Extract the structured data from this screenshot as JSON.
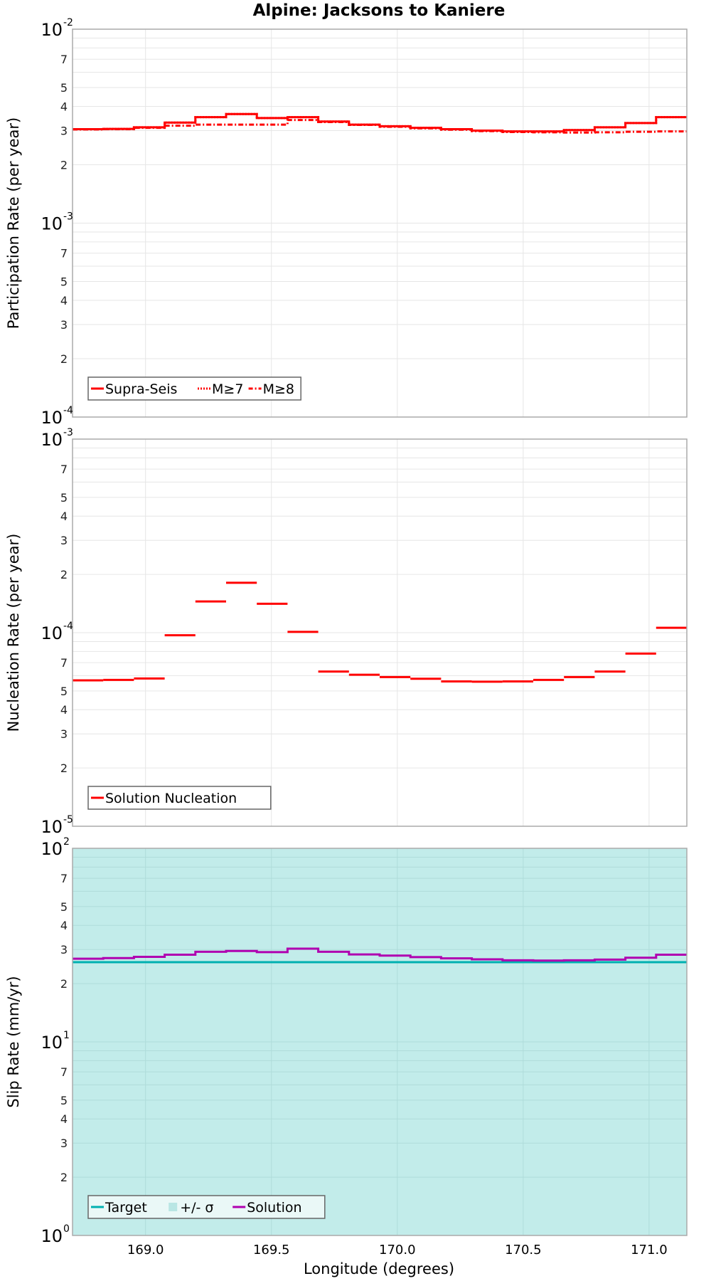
{
  "title": "Alpine: Jacksons to Kaniere",
  "xlabel": "Longitude (degrees)",
  "colors": {
    "red": "#ff0000",
    "target": "#00b0b0",
    "sigma_fill": "#c2ecea",
    "solution": "#b000b0",
    "grid": "#e6e6e6",
    "axis": "#aaaaaa"
  },
  "chart_data": [
    {
      "type": "line",
      "title": "Alpine: Jacksons to Kaniere",
      "xlabel": "Longitude (degrees)",
      "ylabel": "Participation Rate (per year)",
      "yscale": "log",
      "ylim": [
        0.0001,
        0.01
      ],
      "xlim": [
        168.71,
        171.15
      ],
      "x_ticks": [
        "169.0",
        "169.5",
        "170.0",
        "170.5",
        "171.0"
      ],
      "y_major_ticks": [
        "10^-4",
        "10^-3",
        "10^-2"
      ],
      "y_minor_tick_labels": [
        "2",
        "3",
        "4",
        "5",
        "7"
      ],
      "grid": true,
      "legend_position": "lower left",
      "legend": [
        "Supra-Seis",
        "M≥7",
        "M≥8"
      ],
      "x_bin_edges": [
        168.71,
        168.832,
        168.954,
        169.076,
        169.198,
        169.32,
        169.442,
        169.564,
        169.686,
        169.808,
        169.93,
        170.052,
        170.174,
        170.296,
        170.418,
        170.54,
        170.662,
        170.784,
        170.906,
        171.028,
        171.15
      ],
      "series": [
        {
          "name": "Supra-Seis",
          "style": "solid",
          "values": [
            0.00305,
            0.00306,
            0.00312,
            0.0033,
            0.00352,
            0.00365,
            0.00348,
            0.00352,
            0.00334,
            0.00322,
            0.00316,
            0.0031,
            0.00305,
            0.003,
            0.00297,
            0.00297,
            0.00302,
            0.00312,
            0.00328,
            0.00352
          ]
        },
        {
          "name": "M≥7",
          "style": "dotted",
          "values": [
            0.00305,
            0.00306,
            0.00312,
            0.0033,
            0.00352,
            0.00365,
            0.00348,
            0.00352,
            0.00334,
            0.00322,
            0.00316,
            0.0031,
            0.00305,
            0.003,
            0.00297,
            0.00297,
            0.00302,
            0.00312,
            0.00328,
            0.00352
          ]
        },
        {
          "name": "M≥8",
          "style": "dashdot",
          "values": [
            0.00304,
            0.00305,
            0.0031,
            0.00318,
            0.00322,
            0.00322,
            0.00322,
            0.0034,
            0.00332,
            0.00321,
            0.00314,
            0.00308,
            0.00303,
            0.00298,
            0.00295,
            0.00294,
            0.00293,
            0.00294,
            0.00296,
            0.00297
          ]
        }
      ]
    },
    {
      "type": "line",
      "ylabel": "Nucleation Rate (per year)",
      "yscale": "log",
      "ylim": [
        1e-05,
        0.001
      ],
      "xlim": [
        168.71,
        171.15
      ],
      "y_major_ticks": [
        "10^-5",
        "10^-4",
        "10^-3"
      ],
      "y_minor_tick_labels": [
        "2",
        "3",
        "4",
        "5",
        "7"
      ],
      "grid": true,
      "legend_position": "lower left",
      "legend": [
        "Solution Nucleation"
      ],
      "series": [
        {
          "name": "Solution Nucleation",
          "style": "solid",
          "values": [
            5.67e-05,
            5.7e-05,
            5.8e-05,
            9.7e-05,
            0.000145,
            0.000181,
            0.000141,
            0.000101,
            6.3e-05,
            6.06e-05,
            5.9e-05,
            5.78e-05,
            5.6e-05,
            5.58e-05,
            5.6e-05,
            5.7e-05,
            5.9e-05,
            6.3e-05,
            7.8e-05,
            0.000106
          ]
        }
      ]
    },
    {
      "type": "line",
      "ylabel": "Slip Rate (mm/yr)",
      "yscale": "log",
      "ylim": [
        1,
        100
      ],
      "xlim": [
        168.71,
        171.15
      ],
      "y_major_ticks": [
        "10^0",
        "10^1",
        "10^2"
      ],
      "y_minor_tick_labels": [
        "2",
        "3",
        "4",
        "5",
        "7"
      ],
      "grid": true,
      "legend_position": "lower left",
      "legend": [
        "Target",
        "+/- σ",
        "Solution"
      ],
      "series": [
        {
          "name": "Target",
          "style": "solid",
          "values": [
            25.8,
            25.8,
            25.8,
            25.8,
            25.8,
            25.8,
            25.8,
            25.8,
            25.8,
            25.8,
            25.8,
            25.8,
            25.8,
            25.8,
            25.8,
            25.8,
            25.8,
            25.8,
            25.8,
            25.8
          ]
        },
        {
          "name": "+/- σ",
          "style": "fill",
          "lower": 1,
          "upper": 100
        },
        {
          "name": "Solution",
          "style": "solid",
          "values": [
            26.9,
            27.1,
            27.5,
            28.2,
            29.2,
            29.5,
            29.1,
            30.3,
            29.2,
            28.3,
            27.9,
            27.4,
            27.0,
            26.7,
            26.4,
            26.3,
            26.4,
            26.6,
            27.2,
            28.2
          ]
        }
      ]
    }
  ],
  "panels": [
    {
      "ylabel": "Participation Rate (per year)",
      "major": [
        {
          "base": "10",
          "exp": "-2"
        },
        {
          "base": "10",
          "exp": "-3"
        },
        {
          "base": "10",
          "exp": "-4"
        }
      ],
      "legend": [
        "Supra-Seis",
        "M≥7",
        "M≥8"
      ]
    },
    {
      "ylabel": "Nucleation Rate (per year)",
      "major": [
        {
          "base": "10",
          "exp": "-3"
        },
        {
          "base": "10",
          "exp": "-4"
        },
        {
          "base": "10",
          "exp": "-5"
        }
      ],
      "legend": [
        "Solution Nucleation"
      ]
    },
    {
      "ylabel": "Slip Rate (mm/yr)",
      "major": [
        {
          "base": "10",
          "exp": "2"
        },
        {
          "base": "10",
          "exp": "1"
        },
        {
          "base": "10",
          "exp": "0"
        }
      ],
      "legend": [
        "Target",
        "+/- σ",
        "Solution"
      ]
    }
  ],
  "minor_labels": [
    "2",
    "3",
    "4",
    "5",
    "7"
  ],
  "x_ticks": [
    "169.0",
    "169.5",
    "170.0",
    "170.5",
    "171.0"
  ]
}
